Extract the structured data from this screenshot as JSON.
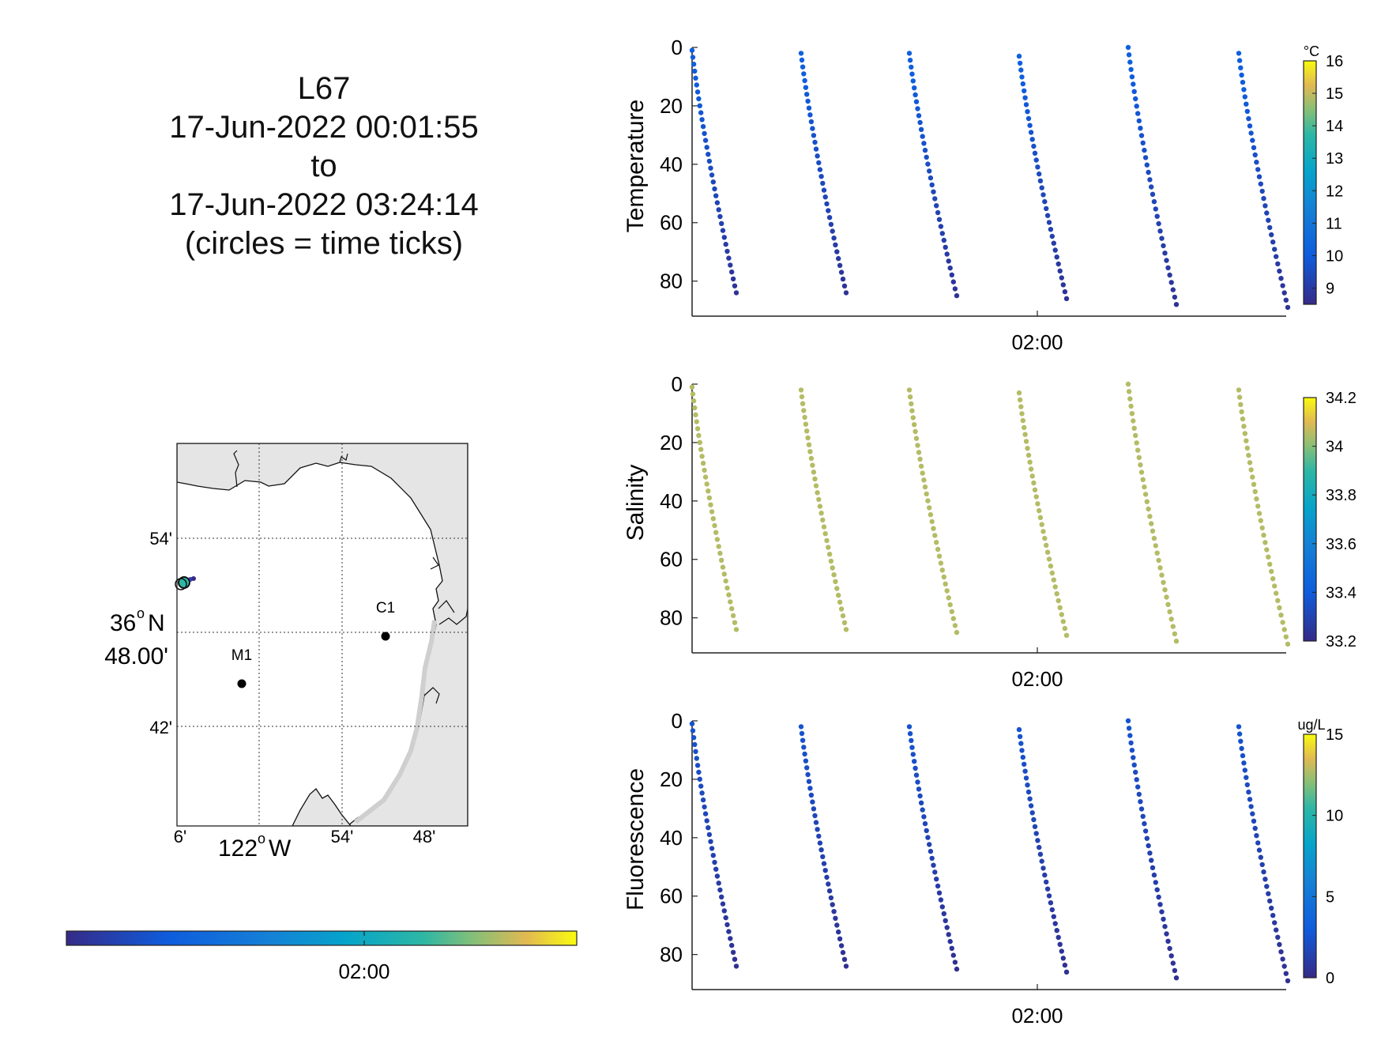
{
  "title": {
    "line1": "L67",
    "line2": "17-Jun-2022 00:01:55",
    "line3": "to",
    "line4": "17-Jun-2022 03:24:14",
    "line5": "(circles = time ticks)"
  },
  "map": {
    "lat_label_deg": "36",
    "lat_label_hemi": "N",
    "lat_label_min": "48.00'",
    "lat_ticks": [
      "54'",
      "42'"
    ],
    "lon_ticks_left": [
      "6'"
    ],
    "lon_label_deg": "122",
    "lon_label_hemi": "W",
    "lon_ticks_right": [
      "54'",
      "48'"
    ],
    "stations": [
      {
        "name": "C1"
      },
      {
        "name": "M1"
      }
    ],
    "land_color": "#e5e5e5",
    "grid": true
  },
  "time_colorbar": {
    "tick_label": "02:00"
  },
  "chart_data": [
    {
      "type": "scatter",
      "ylabel": "Temperature",
      "y_reversed": true,
      "ylim": [
        0,
        92
      ],
      "yticks": [
        "0",
        "20",
        "40",
        "60",
        "80"
      ],
      "xtick_label": "02:00",
      "colorbar": {
        "unit": "°C",
        "ticks": [
          "16",
          "15",
          "14",
          "13",
          "12",
          "11",
          "10",
          "9"
        ],
        "range": [
          8.5,
          16
        ]
      },
      "profile_value": 10.2,
      "profiles": [
        {
          "top": 1,
          "bottom": 84
        },
        {
          "top": 2,
          "bottom": 84
        },
        {
          "top": 2,
          "bottom": 85
        },
        {
          "top": 3,
          "bottom": 86
        },
        {
          "top": 0,
          "bottom": 88
        },
        {
          "top": 2,
          "bottom": 89
        }
      ]
    },
    {
      "type": "scatter",
      "ylabel": "Salinity",
      "y_reversed": true,
      "ylim": [
        0,
        92
      ],
      "yticks": [
        "0",
        "20",
        "40",
        "60",
        "80"
      ],
      "xtick_label": "02:00",
      "colorbar": {
        "unit": "",
        "ticks": [
          "34.2",
          "34",
          "33.8",
          "33.6",
          "33.4",
          "33.2"
        ],
        "range": [
          33.2,
          34.2
        ]
      },
      "profile_value": 34.05,
      "profiles": [
        {
          "top": 1,
          "bottom": 84
        },
        {
          "top": 2,
          "bottom": 84
        },
        {
          "top": 2,
          "bottom": 85
        },
        {
          "top": 3,
          "bottom": 86
        },
        {
          "top": 0,
          "bottom": 88
        },
        {
          "top": 2,
          "bottom": 89
        }
      ]
    },
    {
      "type": "scatter",
      "ylabel": "Fluorescence",
      "y_reversed": true,
      "ylim": [
        0,
        92
      ],
      "yticks": [
        "0",
        "20",
        "40",
        "60",
        "80"
      ],
      "xtick_label": "02:00",
      "colorbar": {
        "unit": "ug/L",
        "ticks": [
          "15",
          "10",
          "5",
          "0"
        ],
        "range": [
          0,
          15
        ]
      },
      "profile_value": 2.5,
      "profiles": [
        {
          "top": 1,
          "bottom": 84
        },
        {
          "top": 2,
          "bottom": 84
        },
        {
          "top": 2,
          "bottom": 85
        },
        {
          "top": 3,
          "bottom": 86
        },
        {
          "top": 0,
          "bottom": 88
        },
        {
          "top": 2,
          "bottom": 89
        }
      ]
    }
  ]
}
